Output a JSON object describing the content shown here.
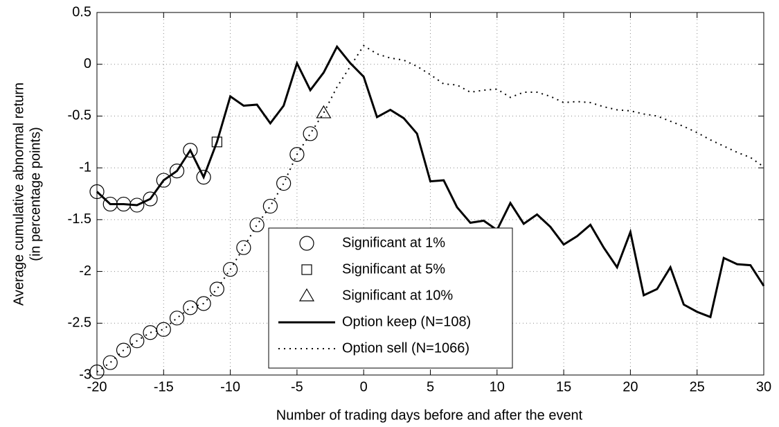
{
  "chart_data": {
    "type": "line",
    "xlabel": "Number of trading days before and after the event",
    "ylabel": [
      "Average cumulative abnormal return",
      "(in percentage points)"
    ],
    "x": [
      -20,
      -19,
      -18,
      -17,
      -16,
      -15,
      -14,
      -13,
      -12,
      -11,
      -10,
      -9,
      -8,
      -7,
      -6,
      -5,
      -4,
      -3,
      -2,
      -1,
      0,
      1,
      2,
      3,
      4,
      5,
      6,
      7,
      8,
      9,
      10,
      11,
      12,
      13,
      14,
      15,
      16,
      17,
      18,
      19,
      20,
      21,
      22,
      23,
      24,
      25,
      26,
      27,
      28,
      29,
      30
    ],
    "xlim": [
      -20,
      30
    ],
    "xticks": [
      -20,
      -15,
      -10,
      -5,
      0,
      5,
      10,
      15,
      20,
      25,
      30
    ],
    "ylim": [
      -3,
      0.5
    ],
    "yticks": [
      -3,
      -2.5,
      -2,
      -1.5,
      -1,
      -0.5,
      0,
      0.5
    ],
    "grid": true,
    "legend": "lower center",
    "markers": [
      {
        "shape": "circle",
        "label": "Significant at 1%"
      },
      {
        "shape": "square",
        "label": "Significant at 5%"
      },
      {
        "shape": "triangle",
        "label": "Significant at 10%"
      }
    ],
    "series": [
      {
        "name": "Option keep (N=108)",
        "color": "#000000",
        "style": "solid",
        "values": [
          -1.23,
          -1.35,
          -1.35,
          -1.36,
          -1.3,
          -1.12,
          -1.03,
          -0.83,
          -1.09,
          -0.75,
          -0.31,
          -0.4,
          -0.39,
          -0.57,
          -0.4,
          0.01,
          -0.25,
          -0.08,
          0.17,
          0.01,
          -0.12,
          -0.51,
          -0.44,
          -0.52,
          -0.67,
          -1.13,
          -1.12,
          -1.38,
          -1.53,
          -1.51,
          -1.6,
          -1.34,
          -1.54,
          -1.45,
          -1.57,
          -1.74,
          -1.66,
          -1.55,
          -1.77,
          -1.96,
          -1.62,
          -2.23,
          -2.17,
          -1.96,
          -2.32,
          -2.39,
          -2.44,
          -1.87,
          -1.93,
          -1.94,
          -2.14
        ],
        "significance": [
          "circle",
          "circle",
          "circle",
          "circle",
          "circle",
          "circle",
          "circle",
          "circle",
          "circle",
          "square",
          null,
          null,
          null,
          null,
          null,
          null,
          null,
          null,
          null,
          null,
          null,
          null,
          null,
          null,
          null,
          null,
          null,
          null,
          null,
          null,
          null,
          null,
          null,
          null,
          null,
          null,
          null,
          null,
          null,
          null,
          null,
          null,
          null,
          null,
          null,
          null,
          null,
          null,
          null,
          null,
          null
        ]
      },
      {
        "name": "Option sell (N=1066)",
        "color": "#000000",
        "style": "dotted",
        "values": [
          -2.97,
          -2.88,
          -2.76,
          -2.67,
          -2.59,
          -2.56,
          -2.45,
          -2.35,
          -2.31,
          -2.17,
          -1.98,
          -1.77,
          -1.55,
          -1.37,
          -1.15,
          -0.87,
          -0.67,
          -0.47,
          -0.22,
          -0.02,
          0.18,
          0.1,
          0.06,
          0.04,
          -0.02,
          -0.1,
          -0.19,
          -0.2,
          -0.27,
          -0.25,
          -0.24,
          -0.32,
          -0.27,
          -0.27,
          -0.31,
          -0.37,
          -0.36,
          -0.37,
          -0.41,
          -0.44,
          -0.45,
          -0.48,
          -0.5,
          -0.55,
          -0.6,
          -0.66,
          -0.73,
          -0.79,
          -0.85,
          -0.9,
          -0.99
        ],
        "significance": [
          "circle",
          "circle",
          "circle",
          "circle",
          "circle",
          "circle",
          "circle",
          "circle",
          "circle",
          "circle",
          "circle",
          "circle",
          "circle",
          "circle",
          "circle",
          "circle",
          "circle",
          "triangle",
          null,
          null,
          null,
          null,
          null,
          null,
          null,
          null,
          null,
          null,
          null,
          null,
          null,
          null,
          null,
          null,
          null,
          null,
          null,
          null,
          null,
          null,
          null,
          null,
          null,
          null,
          null,
          null,
          null,
          null,
          null,
          null,
          null
        ]
      }
    ]
  }
}
